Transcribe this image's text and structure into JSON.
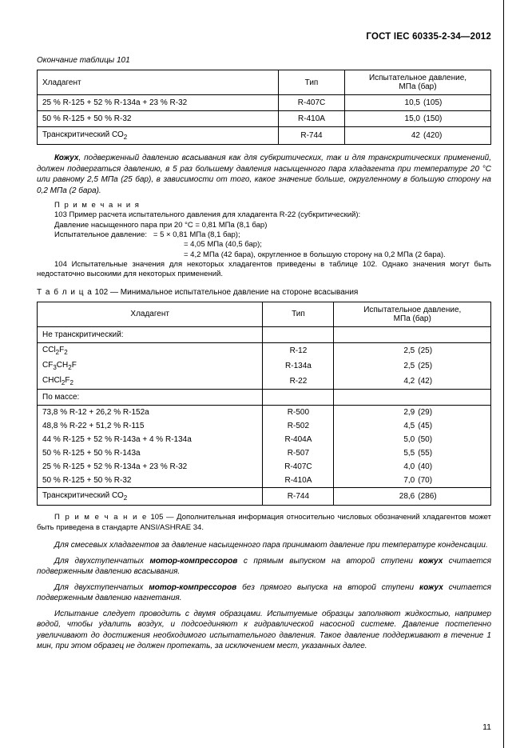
{
  "header": "ГОСТ IEC 60335-2-34—2012",
  "table101": {
    "caption": "Окончание таблицы 101",
    "columns": [
      "Хладагент",
      "Тип",
      "Испытательное давление,\nМПа (бар)"
    ],
    "rows": [
      {
        "agent": "25 % R-125 + 52 % R-134a + 23 % R-32",
        "type": "R-407C",
        "p": "10,5",
        "b": "(105)"
      },
      {
        "agent": "50 % R-125 + 50 % R-32",
        "type": "R-410A",
        "p": "15,0",
        "b": "(150)"
      },
      {
        "agent": "Транскритический СО",
        "sub": "2",
        "type": "R-744",
        "p": "42",
        "b": "(420)"
      }
    ]
  },
  "kozhukh_para": {
    "t1": "Кожух",
    "t2": ", подверженный давлению всасывания как для субкритических, так и для транскритических применений, должен подвергаться давлению, в 5 раз большему давления насыщенного пара хладагента при температуре 20 °С или равному 2,5 МПа (25 бар), в зависимости от того, какое значение больше, округленному в большую сторону на 0,2 МПа (2 бара)."
  },
  "notes1": {
    "label": "П р и м е ч а н и я",
    "l1": "103 Пример расчета испытательного давления для хладагента R-22 (субкритический):",
    "l2": "Давление насыщенного пара при 20 °С = 0,81 МПа (8,1 бар)",
    "l3a": "Испытательное давление:",
    "l3b": "= 5 × 0,81 МПа (8,1 бар);",
    "l4": "= 4,05 МПа (40,5 бар);",
    "l5": "= 4,2 МПа (42 бара), округленное в большую сторону на 0,2 МПа (2 бара).",
    "l6": "104 Испытательные значения для некоторых хладагентов приведены в таблице 102. Однако значения могут быть недостаточно высокими для некоторых применений."
  },
  "table102": {
    "title_label": "Т а б л и ц а",
    "title_rest": "  102 — Минимальное испытательное давление на стороне всасывания",
    "columns": [
      "Хладагент",
      "Тип",
      "Испытательное давление,\nМПа (бар)"
    ],
    "sections": [
      {
        "header": "Не транскритический:",
        "rows": [
          {
            "agent_html": "CCl<sub>2</sub>F<sub>2</sub>",
            "type": "R-12",
            "p": "2,5",
            "b": "(25)"
          },
          {
            "agent_html": "CF<sub>3</sub>CH<sub>2</sub>F",
            "type": "R-134a",
            "p": "2,5",
            "b": "(25)"
          },
          {
            "agent_html": "CHCl<sub>2</sub>F<sub>2</sub>",
            "type": "R-22",
            "p": "4,2",
            "b": "(42)"
          }
        ]
      },
      {
        "header": "По массе:",
        "rows": [
          {
            "agent_html": "73,8 % R-12 + 26,2 % R-152a",
            "type": "R-500",
            "p": "2,9",
            "b": "(29)"
          },
          {
            "agent_html": "48,8 % R-22 + 51,2 % R-115",
            "type": "R-502",
            "p": "4,5",
            "b": "(45)"
          },
          {
            "agent_html": "44 % R-125 + 52 % R-143a + 4 % R-134a",
            "type": "R-404A",
            "p": "5,0",
            "b": "(50)"
          },
          {
            "agent_html": "50 % R-125 + 50 % R-143a",
            "type": "R-507",
            "p": "5,5",
            "b": "(55)"
          },
          {
            "agent_html": "25 % R-125 + 52 % R-134a + 23 % R-32",
            "type": "R-407C",
            "p": "4,0",
            "b": "(40)"
          },
          {
            "agent_html": "50 % R-125 + 50 % R-32",
            "type": "R-410A",
            "p": "7,0",
            "b": "(70)"
          }
        ]
      },
      {
        "header": null,
        "rows": [
          {
            "agent_html": "Транскритический СО<sub>2</sub>",
            "type": "R-744",
            "p": "28,6",
            "b": "(286)"
          }
        ]
      }
    ]
  },
  "note105": {
    "label": "П р и м е ч а н и е",
    "text": "  105 — Дополнительная информация относительно числовых обозначений хладагентов может быть приведена в стандарте ANSI/ASHRAE 34."
  },
  "paras": [
    {
      "i": true,
      "html": "Для смесевых хладагентов за давление насыщенного пара принимают давление при температуре конденсации."
    },
    {
      "i": true,
      "html": "Для двухступенчатых <b>мотор-компрессоров</b> с прямым выпуском на второй ступени <b>кожух</b> считается подверженным давлению всасывания."
    },
    {
      "i": true,
      "html": "Для двухступенчатых <b>мотор-компрессоров</b> без прямого выпуска на второй ступени <b>кожух</b> считается подверженным давлению нагнетания."
    },
    {
      "i": true,
      "html": "Испытание следует проводить с двумя образцами. Испытуемые образцы заполняют жидкостью, например водой, чтобы удалить воздух, и подсоединяют к гидравлической насосной системе. Давление постепенно увеличивают до достижения необходимого испытательного давления. Такое давление поддерживают в течение 1 мин, при этом образец не должен протекать, за исключением мест, указанных далее."
    }
  ],
  "pagenum": "11"
}
